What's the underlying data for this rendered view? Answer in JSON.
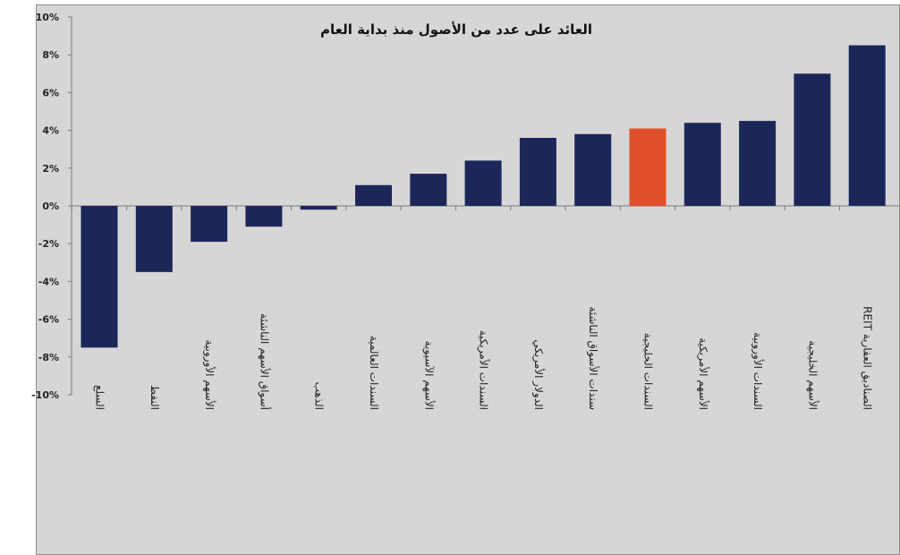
{
  "chart_data": {
    "type": "bar",
    "title": "العائد على عدد من الأصول منذ بداية العام",
    "xlabel": "",
    "ylabel": "",
    "ylim": [
      -10,
      10
    ],
    "y_tick_step": 2,
    "y_tick_format": "percent",
    "y_ticks": [
      "10%",
      "8%",
      "6%",
      "4%",
      "2%",
      "0%",
      "-2%",
      "-4%",
      "-6%",
      "-8%",
      "-10%"
    ],
    "grid": false,
    "legend": "none",
    "categories": [
      "السلع",
      "النفط",
      "الأسهم الأوروبية",
      "أسواق الأسهم الناشئة",
      "الذهب",
      "السندات العالمية",
      "الأسهم الآسيوية",
      "السندات الأمريكية",
      "الدولار الأمريكي",
      "سندات الأسواق الناشئة",
      "السندات الخليجية",
      "الأسهم الأمريكية",
      "السندات الأوروبية",
      "الأسهم الخليجية",
      "الصناديق العقارية REIT"
    ],
    "values": [
      -7.5,
      -3.5,
      -1.9,
      -1.1,
      -0.2,
      1.1,
      1.7,
      2.4,
      3.6,
      3.8,
      4.1,
      4.4,
      4.5,
      7.0,
      8.5
    ],
    "colors": {
      "bar": "#1c2759",
      "highlight": "#e1502b",
      "highlight_category": "السندات الخليجية"
    }
  }
}
